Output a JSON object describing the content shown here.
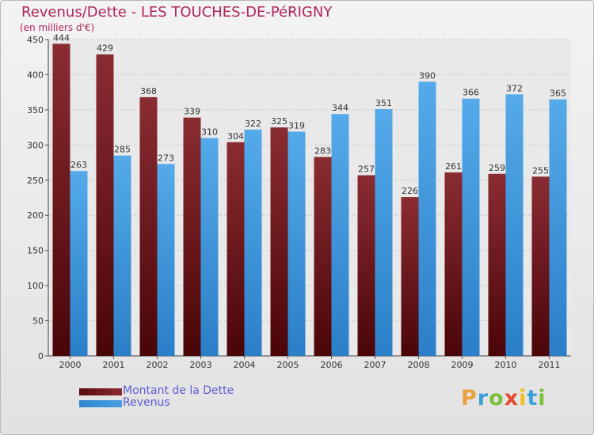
{
  "header": {
    "title": "Revenus/Dette - LES TOUCHES-DE-PéRIGNY",
    "subtitle": "(en milliers d'€)"
  },
  "chart_data": {
    "type": "bar",
    "categories": [
      "2000",
      "2001",
      "2002",
      "2003",
      "2004",
      "2005",
      "2006",
      "2007",
      "2008",
      "2009",
      "2010",
      "2011"
    ],
    "series": [
      {
        "name": "Montant de la Dette",
        "color": "#7a1f24",
        "values": [
          444,
          429,
          368,
          339,
          304,
          325,
          283,
          257,
          226,
          261,
          259,
          255
        ]
      },
      {
        "name": "Revenus",
        "color": "#4a9fe3",
        "values": [
          263,
          285,
          273,
          310,
          322,
          319,
          344,
          351,
          390,
          366,
          372,
          365
        ]
      }
    ],
    "ylim": [
      0,
      450
    ],
    "yticks": [
      0,
      50,
      100,
      150,
      200,
      250,
      300,
      350,
      400,
      450
    ],
    "grid": true,
    "legend": "bottom-left"
  },
  "legend": {
    "items": [
      {
        "label": "Montant de la Dette",
        "color": "#5a0a0e"
      },
      {
        "label": "Revenus",
        "color": "#4a9fe3"
      }
    ]
  },
  "logo": {
    "letters": [
      "P",
      "r",
      "o",
      "x",
      "i",
      "t",
      "i"
    ],
    "colors": [
      "#e8a23a",
      "#3aa0d8",
      "#7cbf3a",
      "#e04a2a",
      "#f0c020",
      "#3aa0d8",
      "#7cbf3a"
    ]
  }
}
